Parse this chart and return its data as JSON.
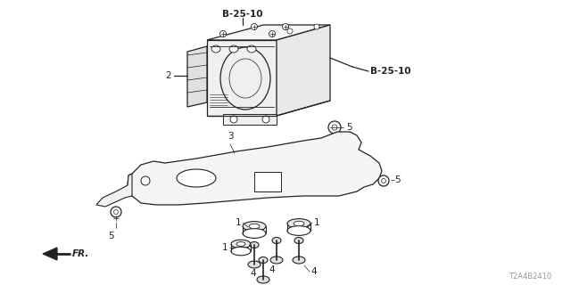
{
  "bg_color": "#ffffff",
  "line_color": "#222222",
  "label_b25_10_top": "B-25-10",
  "label_b25_10_right": "B-25-10",
  "label_2": "2",
  "label_3": "3",
  "label_5a": "5",
  "label_5b": "5",
  "label_5c": "5",
  "label_1a": "1",
  "label_1b": "1",
  "label_4a": "4",
  "label_4b": "4",
  "label_4c": "4",
  "diagram_id": "T2A4B2410",
  "fr_label": "FR."
}
